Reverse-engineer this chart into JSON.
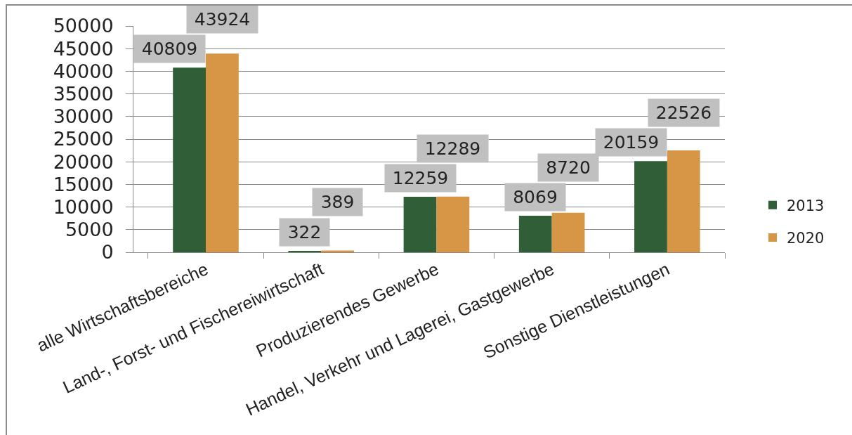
{
  "chart_data": {
    "type": "bar",
    "categories": [
      "alle Wirtschaftsbereiche",
      "Land-, Forst- und Fischereiwirtschaft",
      "Produzierendes Gewerbe",
      "Handel, Verkehr und Lagerei, Gastgewerbe",
      "Sonstige Dienstleistungen"
    ],
    "series": [
      {
        "name": "2013",
        "color": "#2f5e37",
        "values": [
          40809,
          322,
          12259,
          8069,
          20159
        ]
      },
      {
        "name": "2020",
        "color": "#d79646",
        "values": [
          43924,
          389,
          12289,
          8720,
          22526
        ]
      }
    ],
    "ylim": [
      0,
      50000
    ],
    "yticks": [
      0,
      5000,
      10000,
      15000,
      20000,
      25000,
      30000,
      35000,
      40000,
      45000,
      50000
    ],
    "grid": "y",
    "legend": "right",
    "data_labels": true
  }
}
